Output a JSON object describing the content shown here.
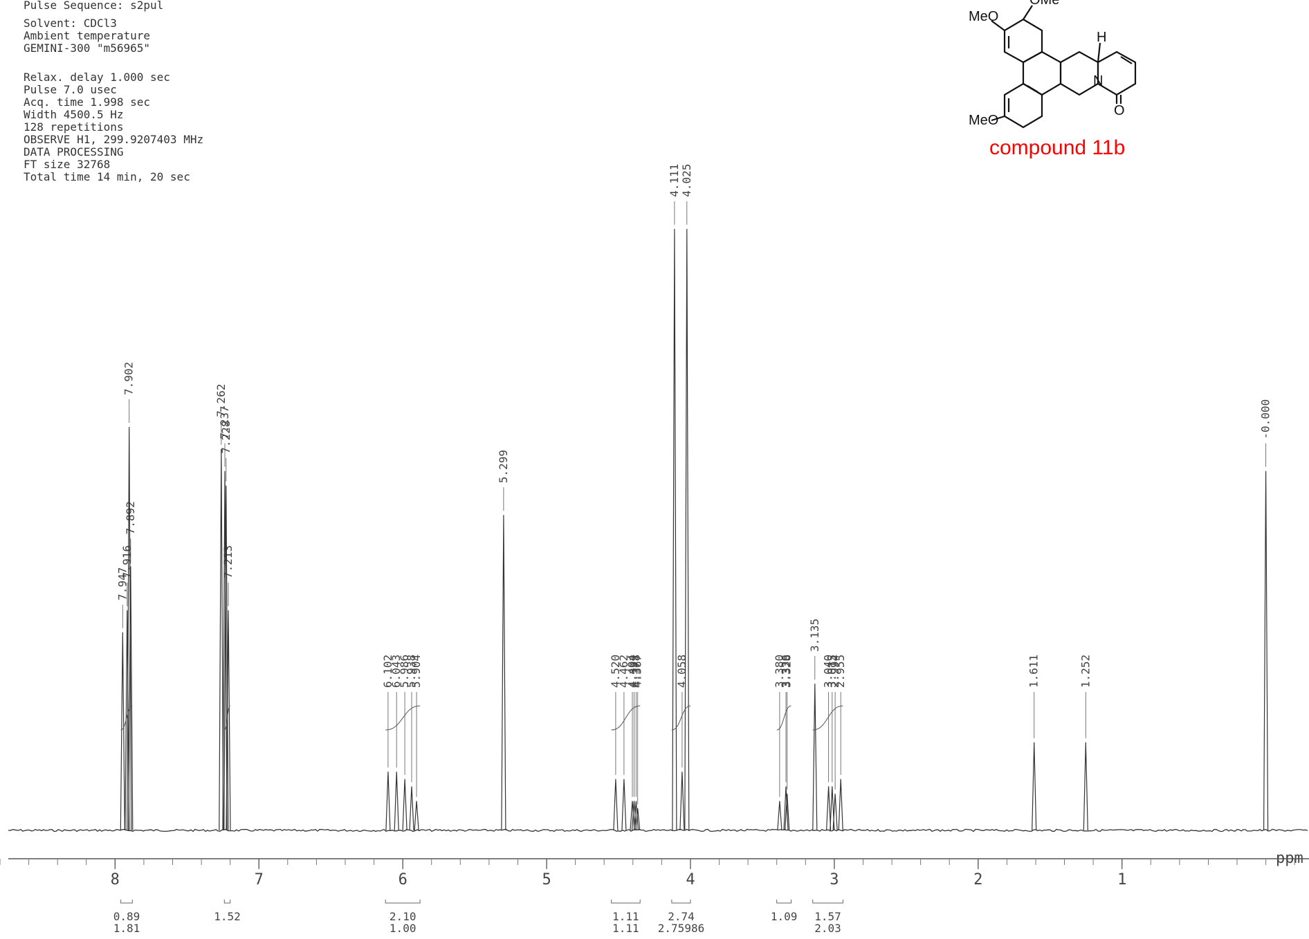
{
  "params": [
    "Pulse Sequence: s2pul",
    " Solvent: CDCl3",
    " Ambient temperature",
    "GEMINI-300  \"m56965\"",
    "",
    " Relax. delay 1.000 sec",
    " Pulse 7.0 usec",
    " Acq. time 1.998 sec",
    " Width 4500.5 Hz",
    " 128 repetitions",
    "OBSERVE   H1, 299.9207403 MHz",
    "DATA PROCESSING",
    "FT size 32768",
    "Total time 14 min, 20 sec"
  ],
  "structure": {
    "labels": [
      "MeO",
      "MeO",
      "H",
      "N",
      "O",
      "OMe"
    ],
    "compound_label": "compound 11b"
  },
  "chart_data": {
    "type": "line",
    "title": "",
    "xlabel": "ppm",
    "ylabel": "",
    "xlim": [
      8.8,
      -0.3
    ],
    "x_reversed": true,
    "x_ticks": [
      8,
      7,
      6,
      5,
      4,
      3,
      2,
      1
    ],
    "x_tick_labels": [
      "8",
      "7",
      "6",
      "5",
      "4",
      "3",
      "2",
      "1"
    ],
    "peaks": [
      {
        "ppm": 7.947,
        "label": "7.947",
        "height": 0.27
      },
      {
        "ppm": 7.916,
        "label": "7.916",
        "height": 0.3
      },
      {
        "ppm": 7.902,
        "label": "7.902",
        "height": 0.55
      },
      {
        "ppm": 7.892,
        "label": "7.892",
        "height": 0.36
      },
      {
        "ppm": 7.262,
        "label": "7.262",
        "height": 0.52
      },
      {
        "ppm": 7.237,
        "label": "7.237",
        "height": 0.49
      },
      {
        "ppm": 7.228,
        "label": "7.228",
        "height": 0.47
      },
      {
        "ppm": 7.213,
        "label": "7.213",
        "height": 0.3
      },
      {
        "ppm": 6.102,
        "label": "6.102",
        "height": 0.08
      },
      {
        "ppm": 6.043,
        "label": "6.043",
        "height": 0.08
      },
      {
        "ppm": 5.986,
        "label": "5.986",
        "height": 0.07
      },
      {
        "ppm": 5.938,
        "label": "5.938",
        "height": 0.06
      },
      {
        "ppm": 5.904,
        "label": "5.904",
        "height": 0.04
      },
      {
        "ppm": 5.299,
        "label": "5.299",
        "height": 0.43
      },
      {
        "ppm": 4.52,
        "label": "4.520",
        "height": 0.07
      },
      {
        "ppm": 4.462,
        "label": "4.462",
        "height": 0.07
      },
      {
        "ppm": 4.404,
        "label": "4.404",
        "height": 0.04
      },
      {
        "ppm": 4.392,
        "label": "4.392",
        "height": 0.04
      },
      {
        "ppm": 4.378,
        "label": "4.378",
        "height": 0.04
      },
      {
        "ppm": 4.367,
        "label": "4.367",
        "height": 0.03
      },
      {
        "ppm": 4.111,
        "label": "4.111",
        "height": 0.82
      },
      {
        "ppm": 4.058,
        "label": "4.058",
        "height": 0.08
      },
      {
        "ppm": 4.025,
        "label": "4.025",
        "height": 0.82
      },
      {
        "ppm": 3.38,
        "label": "3.380",
        "height": 0.04
      },
      {
        "ppm": 3.336,
        "label": "3.336",
        "height": 0.06
      },
      {
        "ppm": 3.328,
        "label": "3.328",
        "height": 0.05
      },
      {
        "ppm": 3.135,
        "label": "3.135",
        "height": 0.2
      },
      {
        "ppm": 3.04,
        "label": "3.040",
        "height": 0.06
      },
      {
        "ppm": 3.015,
        "label": "3.015",
        "height": 0.06
      },
      {
        "ppm": 2.994,
        "label": "2.994",
        "height": 0.05
      },
      {
        "ppm": 2.955,
        "label": "2.955",
        "height": 0.07
      },
      {
        "ppm": 1.611,
        "label": "1.611",
        "height": 0.12
      },
      {
        "ppm": 1.252,
        "label": "1.252",
        "height": 0.12
      },
      {
        "ppm": 0.0,
        "label": "-0.000",
        "height": 0.49
      }
    ],
    "integrals": [
      {
        "from": 7.96,
        "to": 7.88,
        "values": [
          "0.89",
          "1.81"
        ]
      },
      {
        "from": 7.24,
        "to": 7.2,
        "values": [
          "1.52"
        ]
      },
      {
        "from": 6.12,
        "to": 5.88,
        "values": [
          "2.10",
          "1.00"
        ]
      },
      {
        "from": 4.55,
        "to": 4.35,
        "values": [
          "1.11",
          "1.11"
        ]
      },
      {
        "from": 4.13,
        "to": 4.0,
        "values": [
          "2.74",
          "2.75986"
        ]
      },
      {
        "from": 3.4,
        "to": 3.3,
        "values": [
          "1.09"
        ]
      },
      {
        "from": 3.15,
        "to": 2.94,
        "values": [
          "1.57",
          "2.03"
        ]
      }
    ]
  }
}
